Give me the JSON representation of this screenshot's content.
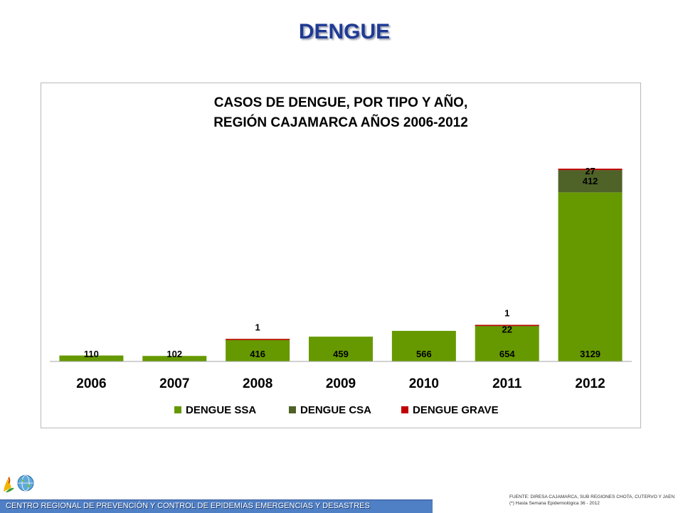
{
  "slide": {
    "title": "DENGUE"
  },
  "footer": {
    "org": "CENTRO REGIONAL DE PREVENCIÓN Y CONTROL DE EPIDEMIAS EMERGENCIAS Y DESASTRES",
    "source_line1": "FUENTE: DIRESA CAJAMARCA, SUB REGIONES CHOTA, CUTERVO Y JAEN",
    "source_line2": "(*) Hasta Semana Epidemiológica 36 - 2012"
  },
  "logos": {
    "left_icon": "regional-logo-icon",
    "globe_icon": "globe-icon"
  },
  "colors": {
    "title": "#1f3a93",
    "ssa": "#669900",
    "csa": "#4f6228",
    "grave": "#c00000",
    "footer_bar": "#4f7fc4"
  },
  "chart_data": {
    "type": "bar",
    "stacked": true,
    "title_lines": [
      "CASOS DE DENGUE, POR TIPO Y AÑO,",
      "REGIÓN CAJAMARCA AÑOS 2006-2012"
    ],
    "categories": [
      "2006",
      "2007",
      "2008",
      "2009",
      "2010",
      "2011",
      "2012"
    ],
    "series": [
      {
        "name": "DENGUE SSA",
        "color": "#669900",
        "values": [
          110,
          102,
          416,
          459,
          566,
          654,
          3129
        ]
      },
      {
        "name": "DENGUE CSA",
        "color": "#4f6228",
        "values": [
          0,
          0,
          0,
          0,
          0,
          22,
          412
        ]
      },
      {
        "name": "DENGUE GRAVE",
        "color": "#c00000",
        "values": [
          0,
          0,
          1,
          0,
          0,
          1,
          27
        ]
      }
    ],
    "ylim": [
      0,
      3700
    ],
    "grid": false,
    "legend": "bottom"
  }
}
